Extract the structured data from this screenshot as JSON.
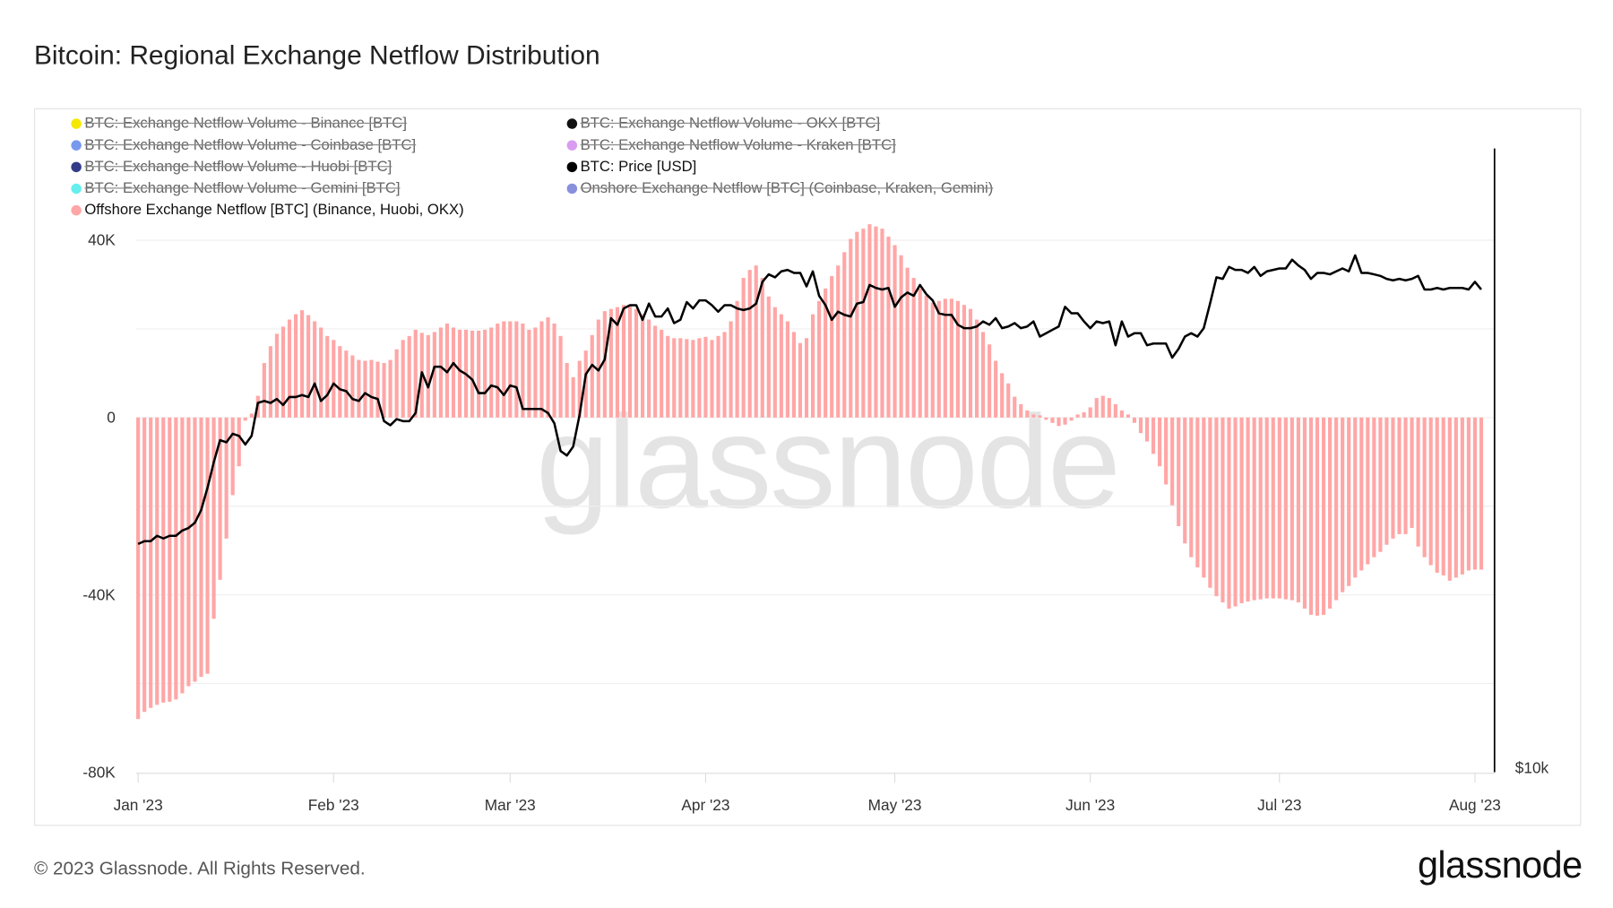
{
  "header": {
    "title": "Bitcoin: Regional Exchange Netflow Distribution"
  },
  "footer": {
    "copyright": "© 2023 Glassnode. All Rights Reserved.",
    "logo": "glassnode",
    "watermark": "glassnode"
  },
  "legend": {
    "left": [
      {
        "label": "BTC: Exchange Netflow Volume - Binance [BTC]",
        "color": "#f5e800",
        "active": false
      },
      {
        "label": "BTC: Exchange Netflow Volume - Coinbase [BTC]",
        "color": "#7799ee",
        "active": false
      },
      {
        "label": "BTC: Exchange Netflow Volume - Huobi [BTC]",
        "color": "#333c88",
        "active": false
      },
      {
        "label": "BTC: Exchange Netflow Volume - Gemini [BTC]",
        "color": "#66eeee",
        "active": false
      },
      {
        "label": "Offshore Exchange Netflow [BTC] (Binance, Huobi, OKX)",
        "color": "#ffa6a6",
        "active": true
      }
    ],
    "right": [
      {
        "label": "BTC: Exchange Netflow Volume - OKX [BTC]",
        "color": "#111111",
        "active": false
      },
      {
        "label": "BTC: Exchange Netflow Volume - Kraken [BTC]",
        "color": "#d99cf0",
        "active": false
      },
      {
        "label": "BTC: Price [USD]",
        "color": "#000000",
        "active": true
      },
      {
        "label": "Onshore Exchange Netflow [BTC] (Coinbase, Kraken, Gemini)",
        "color": "#8890dd",
        "active": false
      }
    ]
  },
  "chart_data": {
    "type": "bar+line",
    "title": "Bitcoin: Regional Exchange Netflow Distribution",
    "y_left": {
      "ticks": [
        {
          "value": 40000,
          "label": "40K"
        },
        {
          "value": 0,
          "label": "0"
        },
        {
          "value": -40000,
          "label": "-40K"
        },
        {
          "value": -80000,
          "label": "-80K"
        }
      ],
      "ylim": [
        -80000,
        60700
      ]
    },
    "y_right": {
      "scale": "log",
      "ticks": [
        {
          "value": 10000,
          "label": "$10k"
        }
      ],
      "ylim": [
        10000,
        40000
      ]
    },
    "x_ticks": [
      "Jan '23",
      "Feb '23",
      "Mar '23",
      "Apr '23",
      "May '23",
      "Jun '23",
      "Jul '23",
      "Aug '23"
    ],
    "grid": true,
    "legend_position": "top-left",
    "bar_color": "#ffa6a6",
    "line_color": "#000000",
    "months": [
      {
        "month": "2023-01",
        "offshore_netflow": [
          -68000,
          -66400,
          -65500,
          -64800,
          -64300,
          -64100,
          -63600,
          -62200,
          -60600,
          -59600,
          -58500,
          -57800,
          -45400,
          -36600,
          -27300,
          -17500,
          -11000,
          -700,
          900,
          4900,
          12300,
          16100,
          18900,
          20500,
          22100,
          23300,
          24200,
          23100,
          21700,
          20300,
          18400
        ],
        "price": [
          16600,
          16700,
          16700,
          16900,
          16800,
          16900,
          16900,
          17100,
          17200,
          17400,
          17900,
          18800,
          19900,
          20900,
          20800,
          21200,
          21100,
          20700,
          21100,
          22700,
          22800,
          22700,
          22900,
          22600,
          23000,
          23000,
          23100,
          23000,
          23700,
          22800,
          23100
        ]
      },
      {
        "month": "2023-02",
        "offshore_netflow": [
          17500,
          16100,
          15100,
          14000,
          13000,
          12800,
          13000,
          12600,
          12300,
          13000,
          15400,
          17500,
          18400,
          19800,
          19100,
          18600,
          19300,
          20300,
          21200,
          20300,
          19800,
          19800,
          19600,
          19600,
          19800,
          20300,
          21200,
          21700
        ],
        "price": [
          23700,
          23400,
          23300,
          22900,
          22800,
          23200,
          23000,
          22900,
          21800,
          21600,
          21900,
          21800,
          21800,
          22200,
          24300,
          23500,
          24600,
          24600,
          24300,
          24800,
          24400,
          24200,
          23900,
          23200,
          23200,
          23600,
          23500,
          23100
        ]
      },
      {
        "month": "2023-03",
        "offshore_netflow": [
          21700,
          21700,
          21200,
          19800,
          20300,
          21700,
          22600,
          21200,
          18400,
          12300,
          9100,
          12800,
          15100,
          18600,
          22100,
          24000,
          24500,
          24900,
          25400,
          25200,
          24500,
          23300,
          22100,
          20700,
          19800,
          18400,
          17900,
          17900,
          17700,
          17500,
          17900
        ],
        "price": [
          23600,
          23500,
          22400,
          22400,
          22400,
          22400,
          22200,
          21700,
          20400,
          20200,
          20600,
          22100,
          24200,
          24700,
          24400,
          25000,
          27400,
          27000,
          28000,
          28200,
          28200,
          27300,
          28300,
          27500,
          27500,
          28000,
          27100,
          27300,
          28400,
          28000,
          28500
        ]
      },
      {
        "month": "2023-04",
        "offshore_netflow": [
          18200,
          17500,
          18400,
          19300,
          21700,
          26300,
          31500,
          33300,
          34300,
          31500,
          27300,
          24900,
          23300,
          21700,
          19300,
          16800,
          17900,
          23300,
          26300,
          29100,
          31900,
          34300,
          37300,
          40300,
          41900,
          42600,
          43600,
          43100,
          42600,
          40800
        ],
        "price": [
          28500,
          28200,
          27800,
          28200,
          28200,
          28000,
          27900,
          28000,
          28300,
          29700,
          30200,
          30000,
          30400,
          30500,
          30300,
          30300,
          29400,
          30400,
          28800,
          28200,
          27300,
          27800,
          27600,
          27500,
          28300,
          28400,
          29500,
          29300,
          29200,
          29300
        ]
      },
      {
        "month": "2023-05",
        "offshore_netflow": [
          38900,
          36600,
          33800,
          31500,
          29100,
          27500,
          25900,
          26300,
          26800,
          26800,
          26300,
          25400,
          24500,
          22100,
          19300,
          16500,
          12800,
          10000,
          7700,
          4700,
          3000,
          1600,
          700,
          500,
          -500,
          -1200,
          -1900,
          -1600,
          -700,
          700,
          1200
        ],
        "price": [
          28100,
          28700,
          29000,
          28800,
          29500,
          28900,
          28500,
          27700,
          27600,
          27600,
          27000,
          26800,
          26800,
          26900,
          27200,
          27000,
          27400,
          26800,
          26900,
          27100,
          26800,
          26900,
          27200,
          26300,
          26500,
          26700,
          26900,
          28100,
          27700,
          27700,
          27200
        ]
      },
      {
        "month": "2023-06",
        "offshore_netflow": [
          2300,
          4400,
          4900,
          4400,
          3000,
          1600,
          700,
          -1200,
          -3500,
          -5400,
          -8200,
          -11000,
          -15100,
          -19800,
          -24500,
          -28400,
          -31500,
          -33800,
          -36100,
          -38400,
          -40300,
          -41700,
          -43100,
          -42600,
          -41900,
          -41500,
          -41200,
          -41000,
          -40800,
          -40800
        ],
        "price": [
          26800,
          27200,
          27100,
          27200,
          25800,
          27200,
          26300,
          26500,
          26500,
          25800,
          25900,
          25900,
          25900,
          25100,
          25600,
          26300,
          26500,
          26300,
          26800,
          28300,
          30000,
          29900,
          30700,
          30500,
          30500,
          30300,
          30700,
          30100,
          30400,
          30500
        ]
      },
      {
        "month": "2023-07",
        "offshore_netflow": [
          -40800,
          -41000,
          -41200,
          -41700,
          -43100,
          -44500,
          -44700,
          -44500,
          -43100,
          -41200,
          -39400,
          -38000,
          -36100,
          -34500,
          -33100,
          -31500,
          -30300,
          -28700,
          -27300,
          -26300,
          -26300,
          -24900,
          -29100,
          -31500,
          -33300,
          -35000,
          -35600,
          -36800,
          -36100,
          -35400,
          -34500
        ],
        "price": [
          30600,
          30600,
          31200,
          30800,
          30500,
          29900,
          30300,
          30300,
          30200,
          30400,
          30600,
          30400,
          31500,
          30300,
          30300,
          30200,
          30100,
          29900,
          29800,
          29900,
          29800,
          29900,
          30100,
          29200,
          29200,
          29300,
          29200,
          29300,
          29300,
          29300,
          29200
        ]
      },
      {
        "month": "2023-08",
        "offshore_netflow": [
          -34300,
          -34300
        ],
        "price": [
          29700,
          29200
        ]
      }
    ]
  }
}
